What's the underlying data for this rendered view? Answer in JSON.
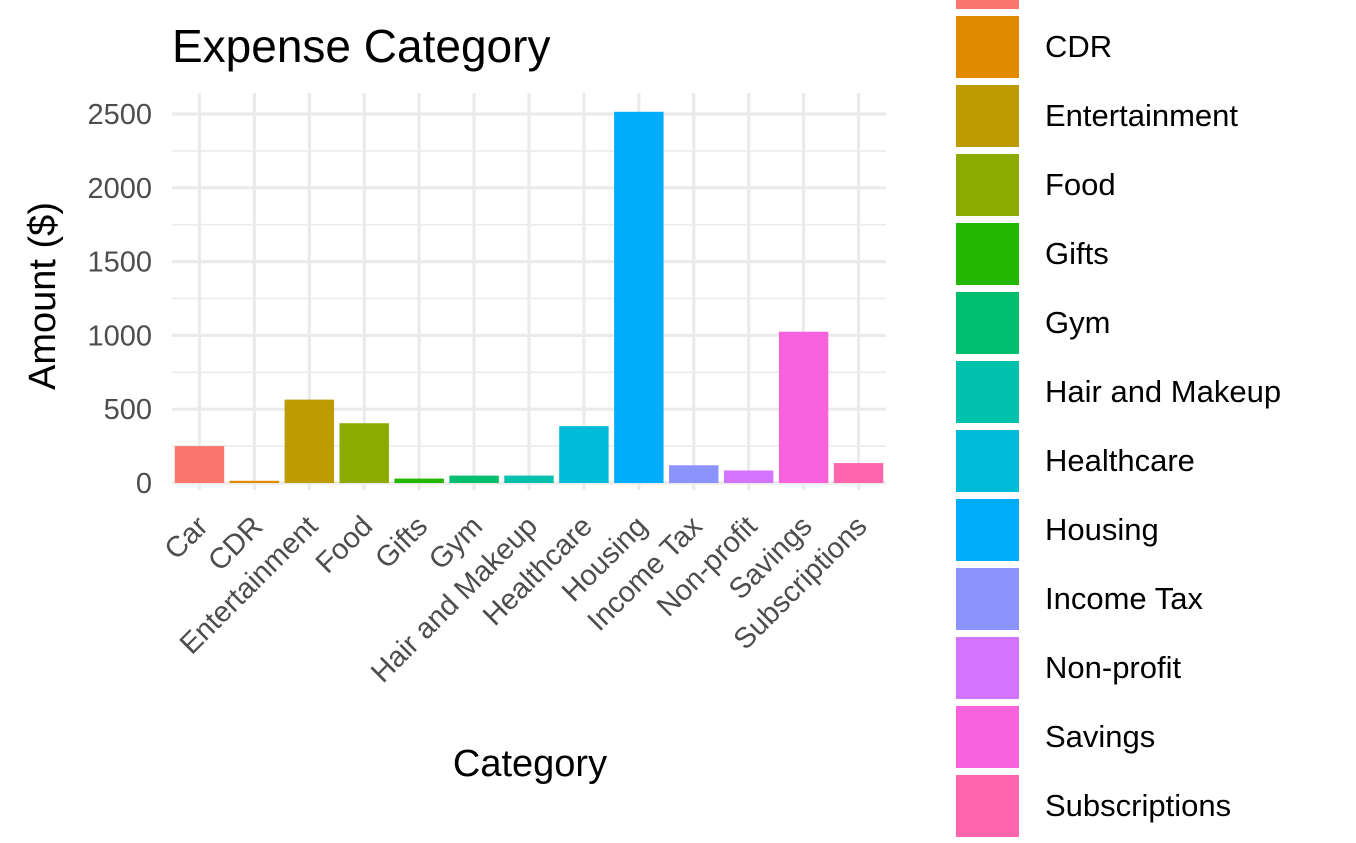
{
  "chart_data": {
    "type": "bar",
    "title": "Expense Category",
    "xlabel": "Category",
    "ylabel": "Amount ($)",
    "categories": [
      "Car",
      "CDR",
      "Entertainment",
      "Food",
      "Gifts",
      "Gym",
      "Hair and Makeup",
      "Healthcare",
      "Housing",
      "Income Tax",
      "Non-profit",
      "Savings",
      "Subscriptions"
    ],
    "values": [
      250,
      15,
      565,
      405,
      30,
      50,
      50,
      385,
      2515,
      120,
      85,
      1025,
      135
    ],
    "colors": [
      "#F8766D",
      "#E18A00",
      "#BE9C00",
      "#8CAB00",
      "#24B700",
      "#00BE70",
      "#00C1AB",
      "#00BBDA",
      "#00ACFC",
      "#8B93FF",
      "#D575FE",
      "#F962DD",
      "#FF65AC"
    ],
    "ylim": [
      0,
      2640
    ],
    "yticks": [
      0,
      500,
      1000,
      1500,
      2000,
      2500
    ],
    "grid": true,
    "legend_position": "right"
  }
}
